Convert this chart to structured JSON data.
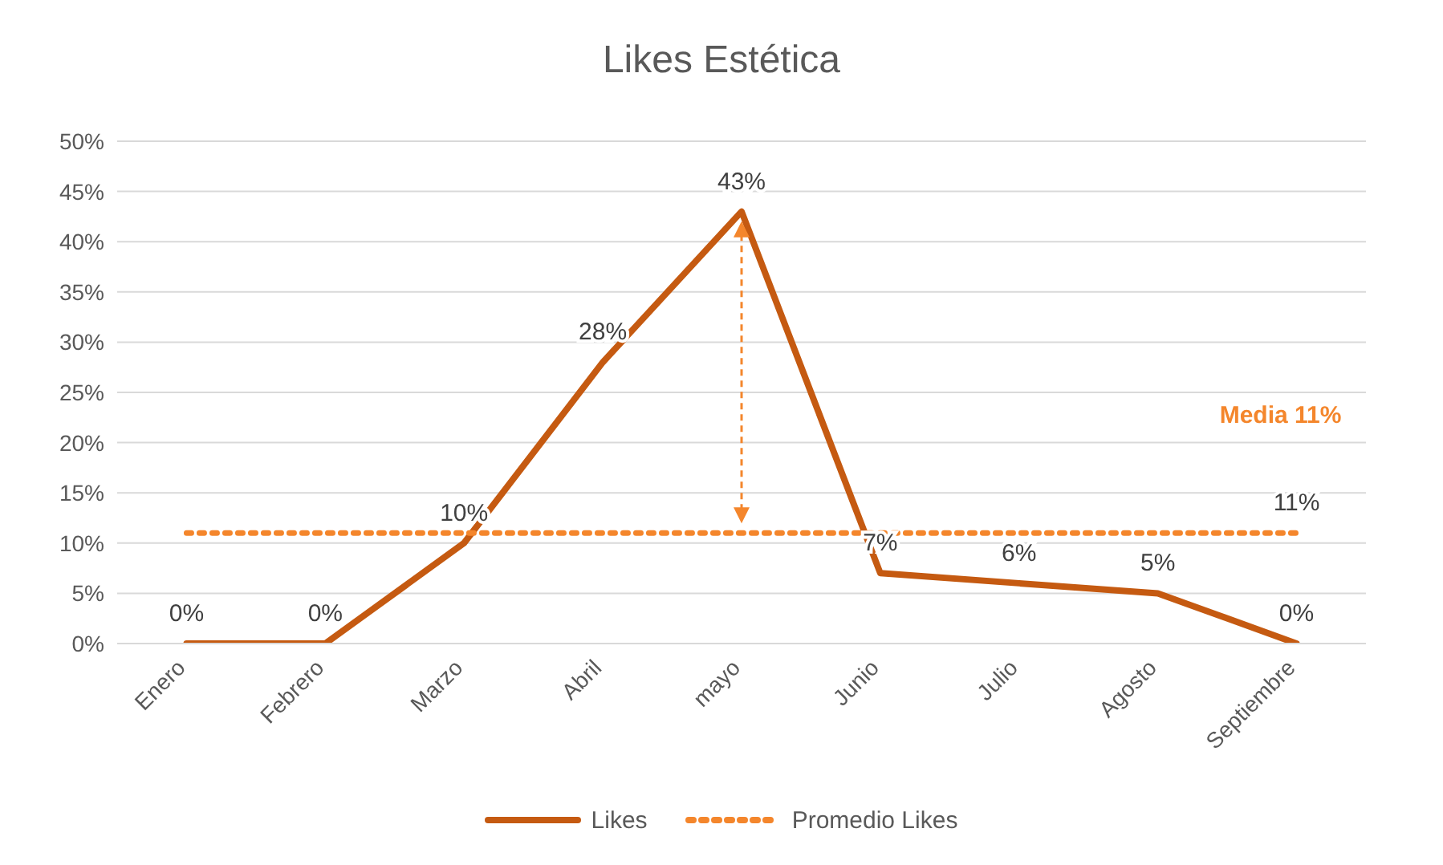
{
  "chart_data": {
    "type": "line",
    "title": "Likes Estética",
    "categories": [
      "Enero",
      "Febrero",
      "Marzo",
      "Abril",
      "mayo",
      "Junio",
      "Julio",
      "Agosto",
      "Septiembre"
    ],
    "series": [
      {
        "name": "Likes",
        "color": "#c55a11",
        "values": [
          0,
          0,
          10,
          28,
          43,
          7,
          6,
          5,
          0
        ],
        "value_labels": [
          "0%",
          "0%",
          "10%",
          "28%",
          "43%",
          "7%",
          "6%",
          "5%",
          "0%"
        ],
        "line_style": "solid"
      },
      {
        "name": "Promedio Likes",
        "color": "#f4862c",
        "values": [
          11,
          11,
          11,
          11,
          11,
          11,
          11,
          11,
          11
        ],
        "value_labels": [
          null,
          null,
          null,
          null,
          null,
          null,
          null,
          null,
          "11%"
        ],
        "line_style": "dotted"
      }
    ],
    "ylim": [
      0,
      50
    ],
    "yticks": [
      {
        "value": 0,
        "label": "0%"
      },
      {
        "value": 5,
        "label": "5%"
      },
      {
        "value": 10,
        "label": "10%"
      },
      {
        "value": 15,
        "label": "15%"
      },
      {
        "value": 20,
        "label": "20%"
      },
      {
        "value": 25,
        "label": "25%"
      },
      {
        "value": 30,
        "label": "30%"
      },
      {
        "value": 35,
        "label": "35%"
      },
      {
        "value": 40,
        "label": "40%"
      },
      {
        "value": 45,
        "label": "45%"
      },
      {
        "value": 50,
        "label": "50%"
      }
    ],
    "grid": "y",
    "legend": "bottom",
    "marker": "none",
    "annotations": [
      "Media 11%"
    ]
  }
}
